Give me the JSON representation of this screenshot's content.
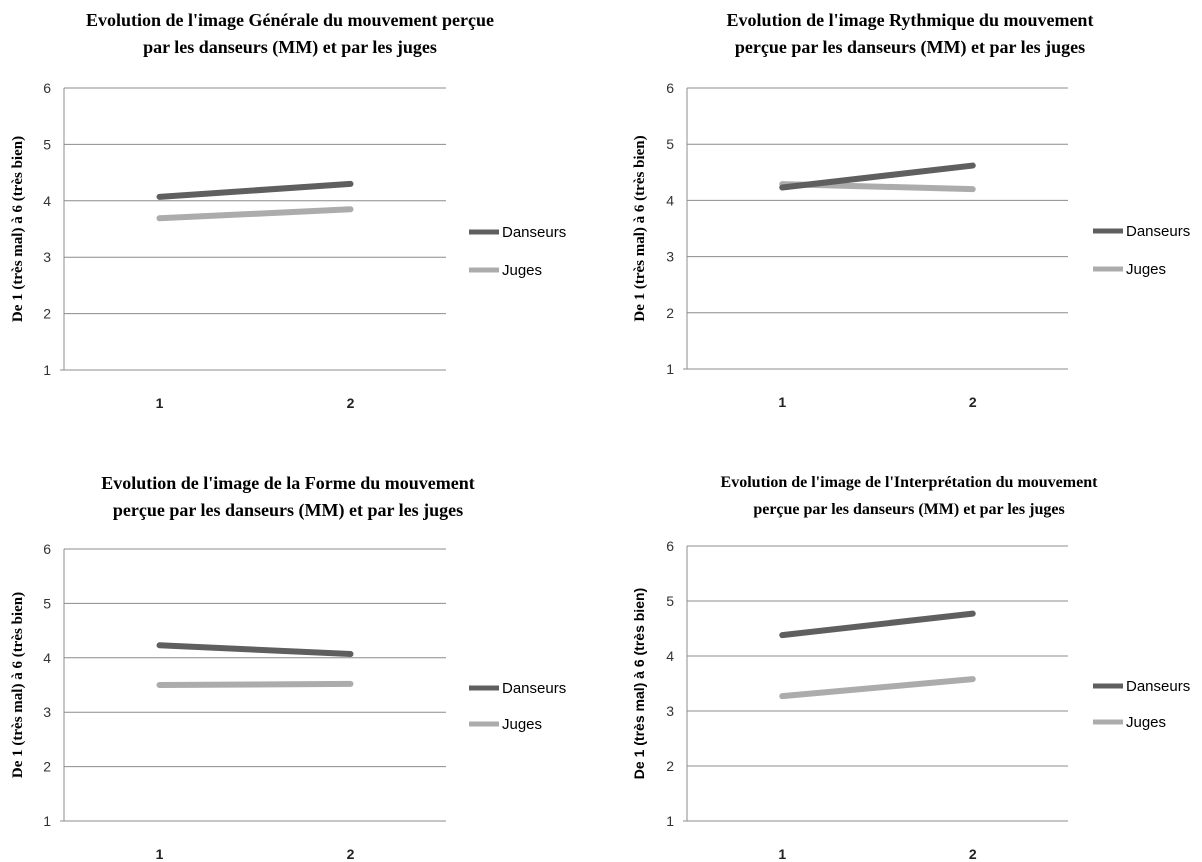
{
  "chart_data": [
    {
      "type": "line",
      "title": [
        "Evolution de l'image Générale du mouvement perçue",
        "par les danseurs (MM) et par les juges"
      ],
      "ylabel": "De 1 (très mal) à 6 (très bien)",
      "x": [
        "1",
        "2"
      ],
      "yticks": [
        "1",
        "2",
        "3",
        "4",
        "5",
        "6"
      ],
      "ylim": [
        1,
        6
      ],
      "grid": true,
      "legend": "right",
      "series": [
        {
          "name": "Danseurs",
          "values": [
            4.07,
            4.3
          ],
          "color": "#5f5f5f"
        },
        {
          "name": "Juges",
          "values": [
            3.69,
            3.85
          ],
          "color": "#acacac"
        }
      ]
    },
    {
      "type": "line",
      "title": [
        "Evolution de l'image Rythmique du mouvement",
        "perçue par les danseurs (MM) et par les juges"
      ],
      "ylabel": "De 1 (très mal) à 6 (très bien)",
      "x": [
        "1",
        "2"
      ],
      "yticks": [
        "1",
        "2",
        "3",
        "4",
        "5",
        "6"
      ],
      "ylim": [
        1,
        6
      ],
      "grid": true,
      "legend": "right",
      "series": [
        {
          "name": "Danseurs",
          "values": [
            4.23,
            4.62
          ],
          "color": "#5f5f5f"
        },
        {
          "name": "Juges",
          "values": [
            4.29,
            4.2
          ],
          "color": "#acacac"
        }
      ]
    },
    {
      "type": "line",
      "title": [
        "Evolution de l'image de la Forme du mouvement",
        "perçue par les danseurs (MM) et par les juges"
      ],
      "ylabel": "De 1 (très mal) à 6 (très bien)",
      "x": [
        "1",
        "2"
      ],
      "yticks": [
        "1",
        "2",
        "3",
        "4",
        "5",
        "6"
      ],
      "ylim": [
        1,
        6
      ],
      "grid": true,
      "legend": "right",
      "series": [
        {
          "name": "Danseurs",
          "values": [
            4.23,
            4.07
          ],
          "color": "#5f5f5f"
        },
        {
          "name": "Juges",
          "values": [
            3.5,
            3.52
          ],
          "color": "#acacac"
        }
      ]
    },
    {
      "type": "line",
      "title": [
        "Evolution de l'image de l'Interprétation du mouvement",
        "perçue par les danseurs (MM) et par les juges"
      ],
      "ylabel": "De 1 (très mal) à 6 (très bien)",
      "x": [
        "1",
        "2"
      ],
      "yticks": [
        "1",
        "2",
        "3",
        "4",
        "5",
        "6"
      ],
      "ylim": [
        1,
        6
      ],
      "grid": true,
      "legend": "right",
      "series": [
        {
          "name": "Danseurs",
          "values": [
            4.38,
            4.77
          ],
          "color": "#5f5f5f"
        },
        {
          "name": "Juges",
          "values": [
            3.27,
            3.58
          ],
          "color": "#acacac"
        }
      ]
    }
  ]
}
